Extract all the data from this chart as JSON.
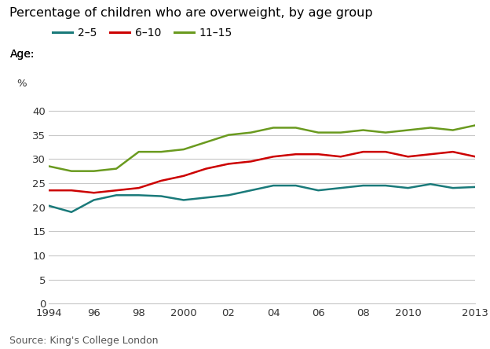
{
  "title": "Percentage of children who are overweight, by age group",
  "ylabel": "%",
  "source": "Source: King's College London",
  "legend_label": "Age:",
  "series": {
    "2-5": {
      "label": "2–5",
      "color": "#1a7a7a",
      "values": [
        20.3,
        19.0,
        21.5,
        22.5,
        22.5,
        22.3,
        21.5,
        22.0,
        22.5,
        23.5,
        24.5,
        24.5,
        23.5,
        24.0,
        24.5,
        24.5,
        24.0,
        24.8,
        24.0,
        24.2
      ]
    },
    "6-10": {
      "label": "6–10",
      "color": "#cc0000",
      "values": [
        23.5,
        23.5,
        23.0,
        23.5,
        24.0,
        25.5,
        26.5,
        28.0,
        29.0,
        29.5,
        30.5,
        31.0,
        31.0,
        30.5,
        31.5,
        31.5,
        30.5,
        31.0,
        31.5,
        30.5
      ]
    },
    "11-15": {
      "label": "11–15",
      "color": "#6a9a1f",
      "values": [
        28.5,
        27.5,
        27.5,
        28.0,
        31.5,
        31.5,
        32.0,
        33.5,
        35.0,
        35.5,
        36.5,
        36.5,
        35.5,
        35.5,
        36.0,
        35.5,
        36.0,
        36.5,
        36.0,
        37.0
      ]
    }
  },
  "years": [
    1994,
    1995,
    1996,
    1997,
    1998,
    1999,
    2000,
    2001,
    2002,
    2003,
    2004,
    2005,
    2006,
    2007,
    2008,
    2009,
    2010,
    2011,
    2012,
    2013
  ],
  "xticks": [
    1994,
    1996,
    1998,
    2000,
    2002,
    2004,
    2006,
    2008,
    2010,
    2013
  ],
  "xticklabels": [
    "1994",
    "96",
    "98",
    "2000",
    "02",
    "04",
    "06",
    "08",
    "2010",
    "2013"
  ],
  "yticks": [
    0,
    5,
    10,
    15,
    20,
    25,
    30,
    35,
    40
  ],
  "ylim": [
    0,
    42
  ],
  "xlim": [
    1994,
    2013
  ],
  "background_color": "#ffffff",
  "grid_color": "#c8c8c8",
  "title_fontsize": 11.5,
  "axis_fontsize": 9.5,
  "legend_fontsize": 10,
  "source_fontsize": 9,
  "line_width": 1.8
}
